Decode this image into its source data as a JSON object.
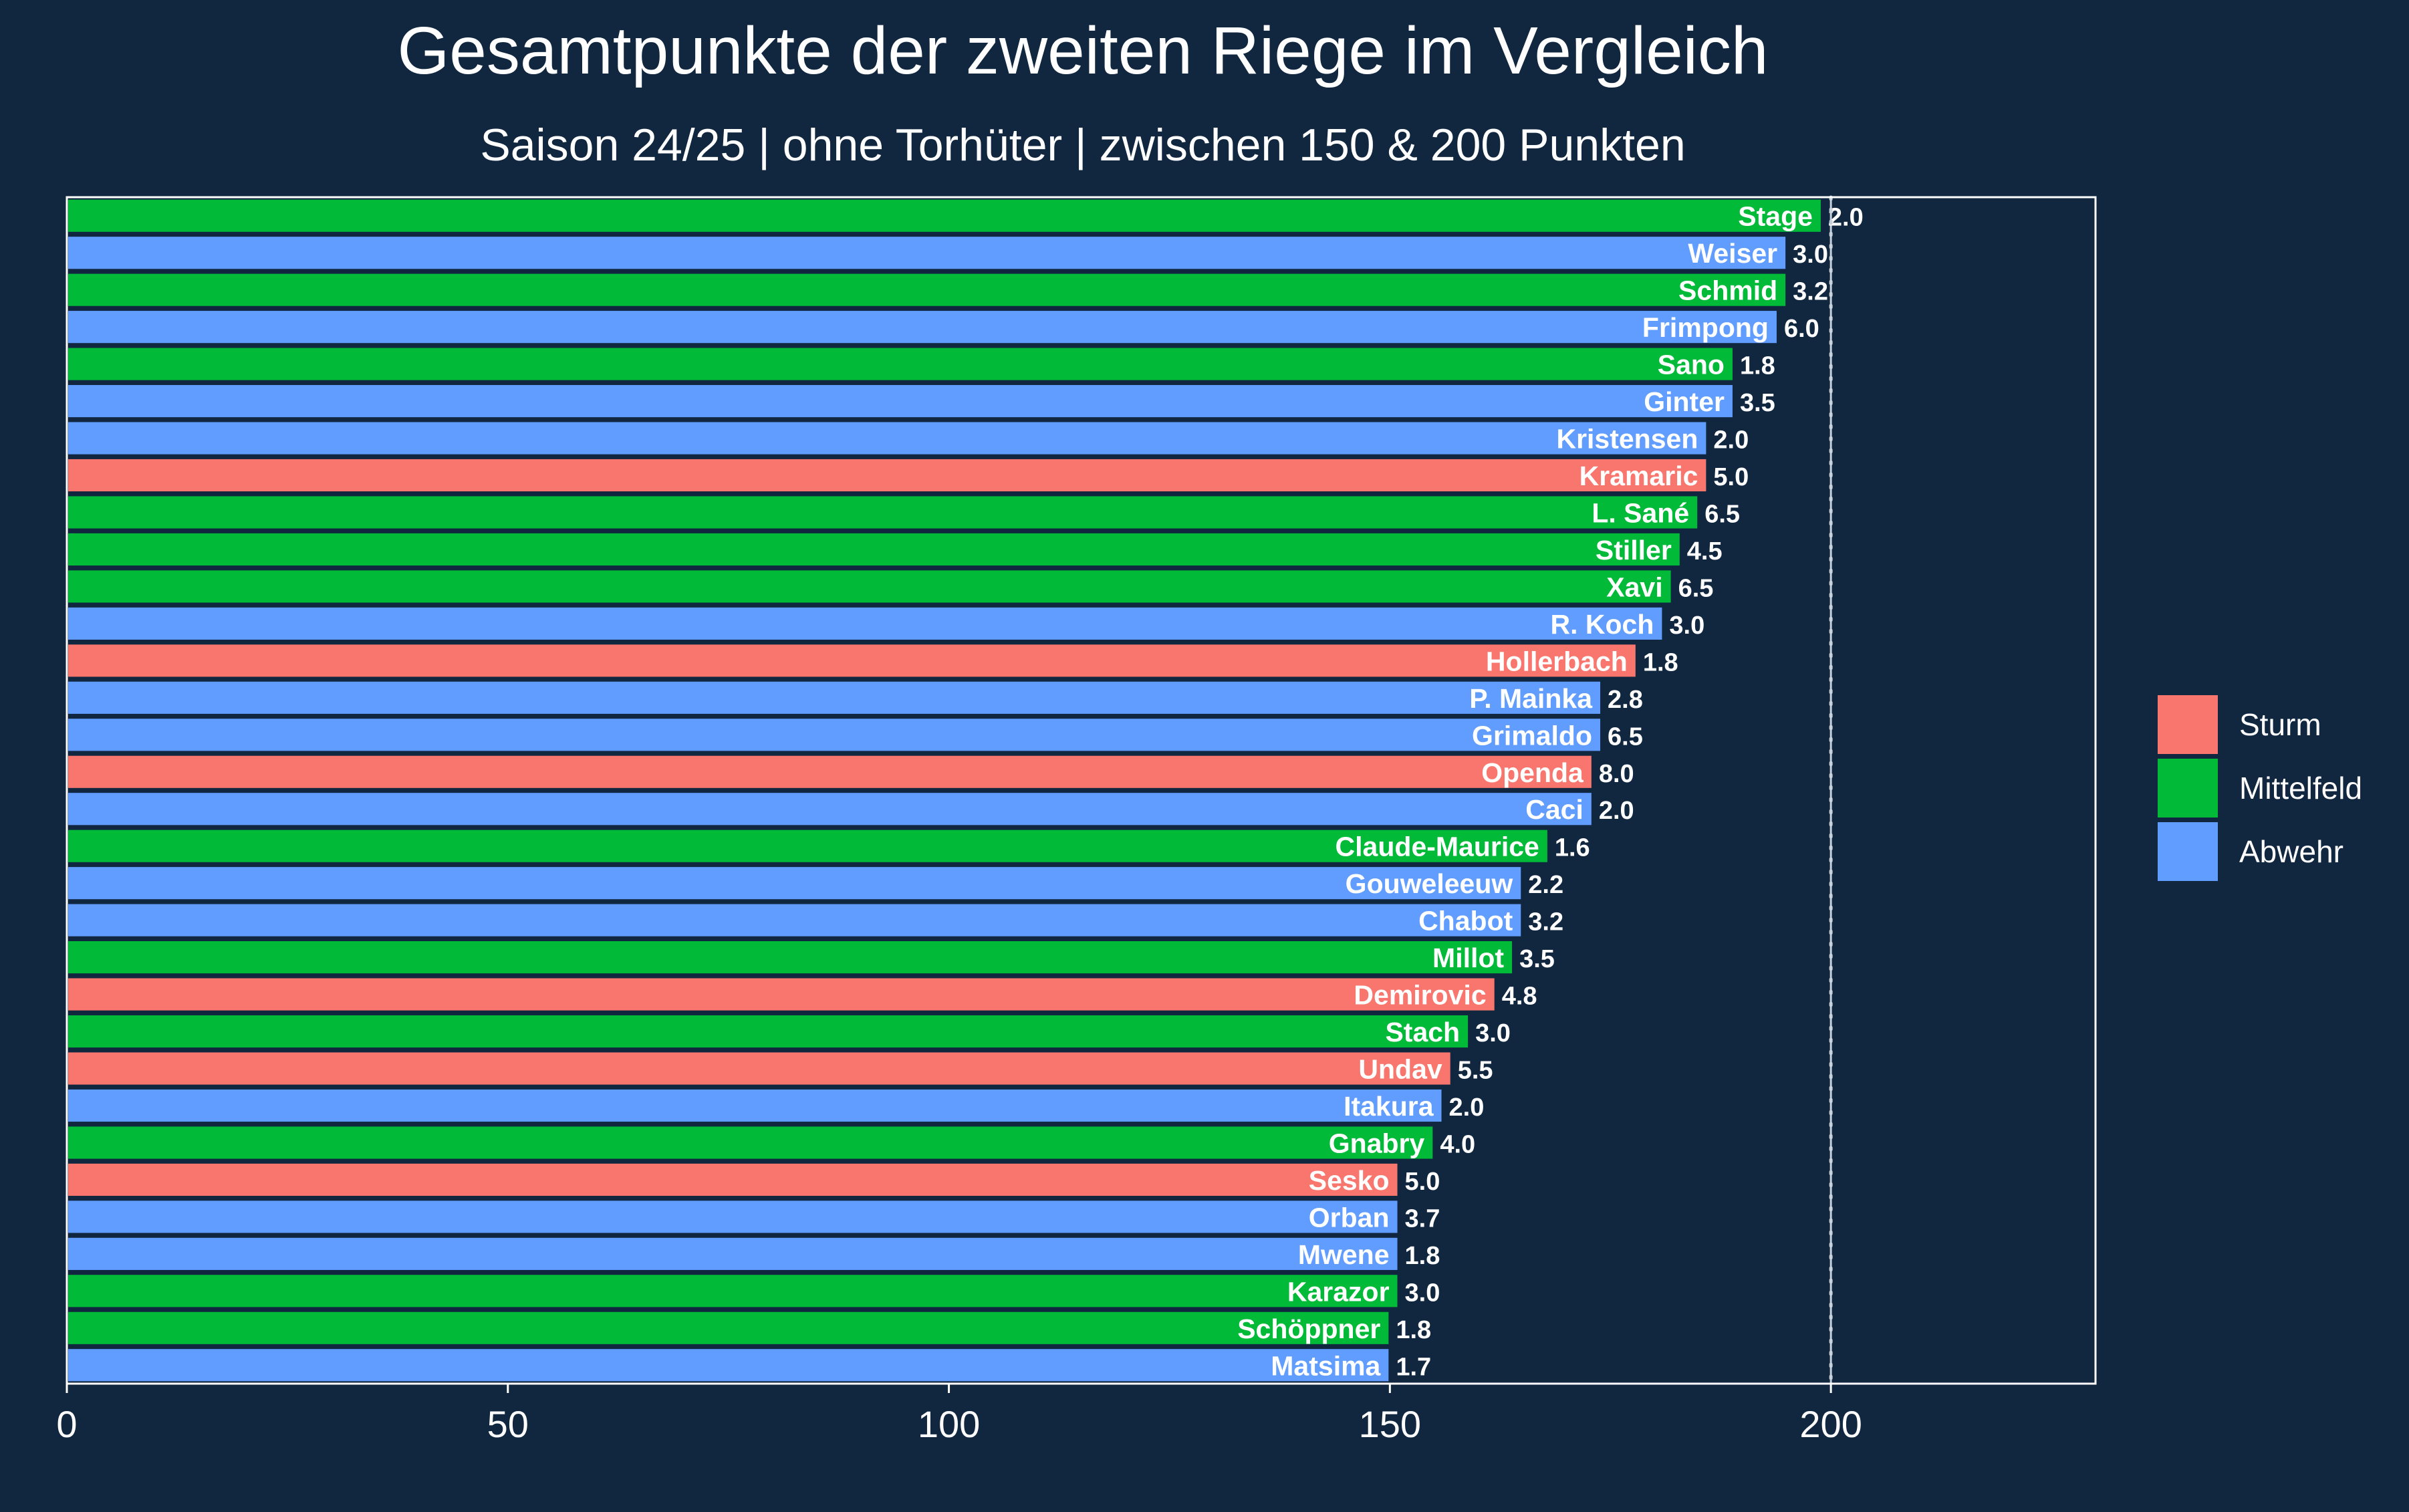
{
  "chart_data": {
    "type": "bar",
    "orientation": "horizontal",
    "title": "Gesamtpunkte der zweiten Riege im Vergleich",
    "subtitle": "Saison 24/25 | ohne Torhüter | zwischen 150 & 200 Punkten",
    "xlabel": "",
    "ylabel": "",
    "xlim": [
      0,
      230
    ],
    "xticks": [
      0,
      50,
      100,
      150,
      200
    ],
    "reference_line": {
      "x": 200,
      "style": "dotted"
    },
    "grid": true,
    "legend_position": "right",
    "legend": [
      {
        "name": "Sturm",
        "color": "#f8766d"
      },
      {
        "name": "Mittelfeld",
        "color": "#00ba38"
      },
      {
        "name": "Abwehr",
        "color": "#619cff"
      }
    ],
    "bars": [
      {
        "player": "Stage",
        "position": "Mittelfeld",
        "value": 199,
        "label": "2.0"
      },
      {
        "player": "Weiser",
        "position": "Abwehr",
        "value": 195,
        "label": "3.0"
      },
      {
        "player": "Schmid",
        "position": "Mittelfeld",
        "value": 195,
        "label": "3.2"
      },
      {
        "player": "Frimpong",
        "position": "Abwehr",
        "value": 194,
        "label": "6.0"
      },
      {
        "player": "Sano",
        "position": "Mittelfeld",
        "value": 189,
        "label": "1.8"
      },
      {
        "player": "Ginter",
        "position": "Abwehr",
        "value": 189,
        "label": "3.5"
      },
      {
        "player": "Kristensen",
        "position": "Abwehr",
        "value": 186,
        "label": "2.0"
      },
      {
        "player": "Kramaric",
        "position": "Sturm",
        "value": 186,
        "label": "5.0"
      },
      {
        "player": "L. Sané",
        "position": "Mittelfeld",
        "value": 185,
        "label": "6.5"
      },
      {
        "player": "Stiller",
        "position": "Mittelfeld",
        "value": 183,
        "label": "4.5"
      },
      {
        "player": "Xavi",
        "position": "Mittelfeld",
        "value": 182,
        "label": "6.5"
      },
      {
        "player": "R. Koch",
        "position": "Abwehr",
        "value": 181,
        "label": "3.0"
      },
      {
        "player": "Hollerbach",
        "position": "Sturm",
        "value": 178,
        "label": "1.8"
      },
      {
        "player": "P. Mainka",
        "position": "Abwehr",
        "value": 174,
        "label": "2.8"
      },
      {
        "player": "Grimaldo",
        "position": "Abwehr",
        "value": 174,
        "label": "6.5"
      },
      {
        "player": "Openda",
        "position": "Sturm",
        "value": 173,
        "label": "8.0"
      },
      {
        "player": "Caci",
        "position": "Abwehr",
        "value": 173,
        "label": "2.0"
      },
      {
        "player": "Claude-Maurice",
        "position": "Mittelfeld",
        "value": 168,
        "label": "1.6"
      },
      {
        "player": "Gouweleeuw",
        "position": "Abwehr",
        "value": 165,
        "label": "2.2"
      },
      {
        "player": "Chabot",
        "position": "Abwehr",
        "value": 165,
        "label": "3.2"
      },
      {
        "player": "Millot",
        "position": "Mittelfeld",
        "value": 164,
        "label": "3.5"
      },
      {
        "player": "Demirovic",
        "position": "Sturm",
        "value": 162,
        "label": "4.8"
      },
      {
        "player": "Stach",
        "position": "Mittelfeld",
        "value": 159,
        "label": "3.0"
      },
      {
        "player": "Undav",
        "position": "Sturm",
        "value": 157,
        "label": "5.5"
      },
      {
        "player": "Itakura",
        "position": "Abwehr",
        "value": 156,
        "label": "2.0"
      },
      {
        "player": "Gnabry",
        "position": "Mittelfeld",
        "value": 155,
        "label": "4.0"
      },
      {
        "player": "Sesko",
        "position": "Sturm",
        "value": 151,
        "label": "5.0"
      },
      {
        "player": "Orban",
        "position": "Abwehr",
        "value": 151,
        "label": "3.7"
      },
      {
        "player": "Mwene",
        "position": "Abwehr",
        "value": 151,
        "label": "1.8"
      },
      {
        "player": "Karazor",
        "position": "Mittelfeld",
        "value": 151,
        "label": "3.0"
      },
      {
        "player": "Schöppner",
        "position": "Mittelfeld",
        "value": 150,
        "label": "1.8"
      },
      {
        "player": "Matsima",
        "position": "Abwehr",
        "value": 150,
        "label": "1.7"
      }
    ]
  },
  "colors": {
    "background": "#11263f",
    "text": "#ffffff",
    "grid": "#c8d0da",
    "bar_outline": "#11263f"
  }
}
